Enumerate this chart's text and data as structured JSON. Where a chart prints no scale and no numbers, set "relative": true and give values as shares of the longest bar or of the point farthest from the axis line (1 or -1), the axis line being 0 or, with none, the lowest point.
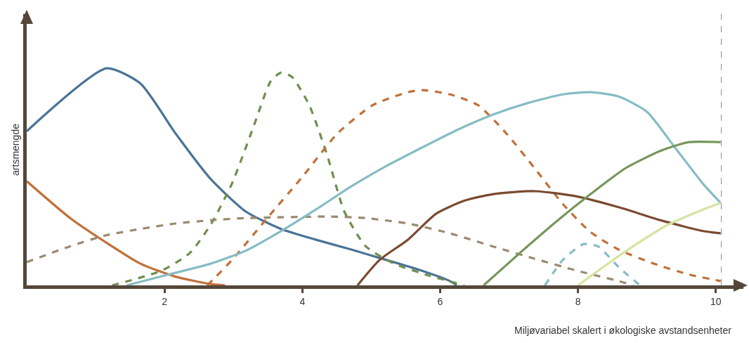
{
  "chart_data": {
    "type": "line",
    "relative": true,
    "xlabel": "Miljøvariabel skalert i økologiske avstandsenheter",
    "ylabel": "artsmengde",
    "xlim": [
      0,
      10.4
    ],
    "xticks": [
      2,
      4,
      6,
      8,
      10
    ],
    "marker": "none",
    "ref_lines": [
      {
        "axis": "x",
        "value": 10.08,
        "color": "#888888",
        "line_style": "dashed"
      }
    ],
    "series": [
      {
        "color": "#4a7396",
        "line_style": "solid",
        "x": [
          0,
          1.16,
          1.65,
          2.16,
          2.67,
          3.18,
          3.69,
          4.2,
          4.71,
          5.22,
          5.73,
          6.14,
          6.24
        ],
        "values": [
          0.71,
          1.0,
          0.93,
          0.7,
          0.49,
          0.34,
          0.26,
          0.21,
          0.165,
          0.117,
          0.068,
          0.02,
          0
        ]
      },
      {
        "color": "#c0703a",
        "line_style": "solid",
        "x": [
          0,
          0.63,
          1.14,
          1.65,
          2.16,
          2.67,
          2.88
        ],
        "values": [
          0.48,
          0.31,
          0.2,
          0.1,
          0.04,
          0.006,
          0
        ]
      },
      {
        "color": "#6f8f4e",
        "line_style": "dashed",
        "x": [
          1.24,
          1.96,
          2.37,
          2.67,
          2.98,
          3.29,
          3.54,
          3.69,
          3.85,
          4.1,
          4.36,
          4.61,
          4.92,
          5.33,
          5.84,
          6.35
        ],
        "values": [
          0,
          0.068,
          0.15,
          0.28,
          0.47,
          0.73,
          0.94,
          0.98,
          0.96,
          0.83,
          0.6,
          0.34,
          0.18,
          0.1,
          0.045,
          0
        ]
      },
      {
        "color": "#c0703a",
        "line_style": "dashed",
        "x": [
          2.62,
          2.98,
          3.49,
          4.0,
          4.51,
          5.02,
          5.53,
          5.73,
          6.14,
          6.55,
          6.96,
          7.37,
          7.78,
          8.18,
          8.59,
          9.1,
          9.61,
          10.07
        ],
        "values": [
          0,
          0.117,
          0.31,
          0.5,
          0.7,
          0.83,
          0.89,
          0.9,
          0.88,
          0.83,
          0.7,
          0.54,
          0.375,
          0.246,
          0.165,
          0.1,
          0.05,
          0.02
        ]
      },
      {
        "color": "#9a8a70",
        "line_style": "dashed",
        "x": [
          0,
          0.63,
          1.14,
          1.65,
          2.16,
          2.67,
          3.18,
          3.69,
          4.41,
          4.92,
          5.53,
          6.14,
          6.76,
          7.37,
          7.98,
          8.59,
          8.8
        ],
        "values": [
          0.107,
          0.18,
          0.23,
          0.26,
          0.285,
          0.3,
          0.31,
          0.314,
          0.317,
          0.31,
          0.285,
          0.24,
          0.18,
          0.123,
          0.068,
          0.02,
          0
        ]
      },
      {
        "color": "#86bcc4",
        "line_style": "solid",
        "x": [
          1.45,
          2.06,
          2.67,
          3.18,
          3.69,
          4.2,
          4.71,
          5.22,
          5.73,
          6.24,
          6.76,
          7.27,
          7.78,
          8.18,
          8.59,
          9.0,
          9.41,
          9.82,
          10.07
        ],
        "values": [
          0,
          0.05,
          0.1,
          0.16,
          0.25,
          0.35,
          0.456,
          0.55,
          0.634,
          0.715,
          0.786,
          0.84,
          0.88,
          0.89,
          0.87,
          0.8,
          0.634,
          0.466,
          0.38
        ]
      },
      {
        "color": "#7a4a30",
        "line_style": "solid",
        "x": [
          4.8,
          5.12,
          5.53,
          5.94,
          6.35,
          6.76,
          7.37,
          7.98,
          8.59,
          9.2,
          9.82,
          10.07
        ],
        "values": [
          0,
          0.117,
          0.21,
          0.33,
          0.39,
          0.42,
          0.434,
          0.41,
          0.36,
          0.3,
          0.25,
          0.24
        ]
      },
      {
        "color": "#76965a",
        "line_style": "solid",
        "x": [
          6.63,
          7.16,
          7.67,
          8.18,
          8.69,
          9.2,
          9.61,
          10.07
        ],
        "values": [
          0,
          0.15,
          0.29,
          0.42,
          0.54,
          0.62,
          0.66,
          0.66
        ]
      },
      {
        "color": "#86bcc4",
        "line_style": "dashed",
        "x": [
          7.52,
          7.78,
          8.08,
          8.29,
          8.59,
          8.9
        ],
        "values": [
          0,
          0.117,
          0.19,
          0.18,
          0.084,
          0
        ]
      },
      {
        "color": "#d6e4a0",
        "line_style": "solid",
        "x": [
          8.0,
          8.39,
          8.8,
          9.31,
          9.82,
          10.07
        ],
        "values": [
          0,
          0.09,
          0.18,
          0.28,
          0.35,
          0.38
        ]
      }
    ]
  }
}
